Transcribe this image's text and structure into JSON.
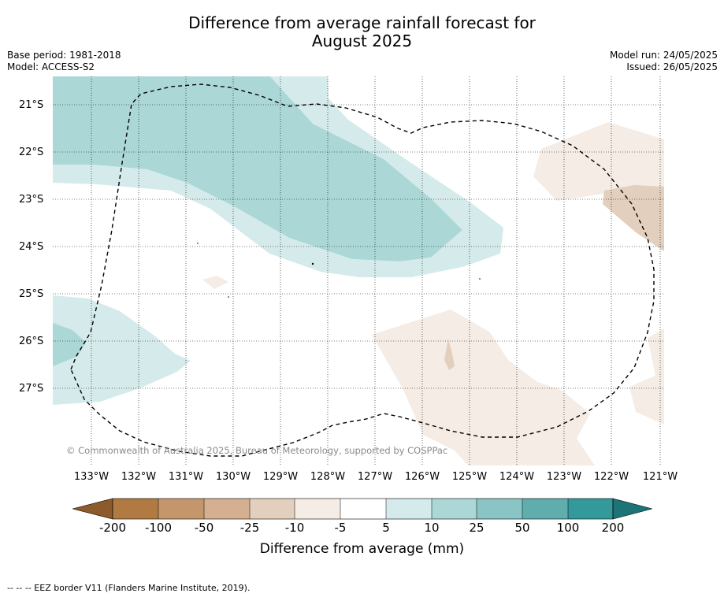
{
  "title_line1": "Difference from average rainfall forecast for",
  "title_line2": "August 2025",
  "base_period": "Base period: 1981-2018",
  "model": "Model: ACCESS-S2",
  "model_run": "Model run: 24/05/2025",
  "issued": "Issued: 26/05/2025",
  "lat_labels": [
    "21°S",
    "22°S",
    "23°S",
    "24°S",
    "25°S",
    "26°S",
    "27°S"
  ],
  "lon_labels": [
    "133°W",
    "132°W",
    "131°W",
    "130°W",
    "129°W",
    "128°W",
    "127°W",
    "126°W",
    "125°W",
    "124°W",
    "123°W",
    "122°W",
    "121°W"
  ],
  "copyright": "© Commonwealth of Australia 2025, Bureau of Meteorology, supported by COSPPac",
  "colorbar": {
    "ticks": [
      "-200",
      "-100",
      "-50",
      "-25",
      "-10",
      "-5",
      "5",
      "10",
      "25",
      "50",
      "100",
      "200"
    ],
    "colors": [
      "#8c5a2b",
      "#b07a42",
      "#c3966c",
      "#d4b090",
      "#e3cfbd",
      "#f4ece5",
      "#ffffff",
      "#d5eaea",
      "#acd7d7",
      "#8bc4c4",
      "#5fadad",
      "#33999a",
      "#1d7477"
    ],
    "label": "Difference from average (mm)"
  },
  "footer": "-- -- -- EEZ border V11 (Flanders Marine Institute, 2019)."
}
